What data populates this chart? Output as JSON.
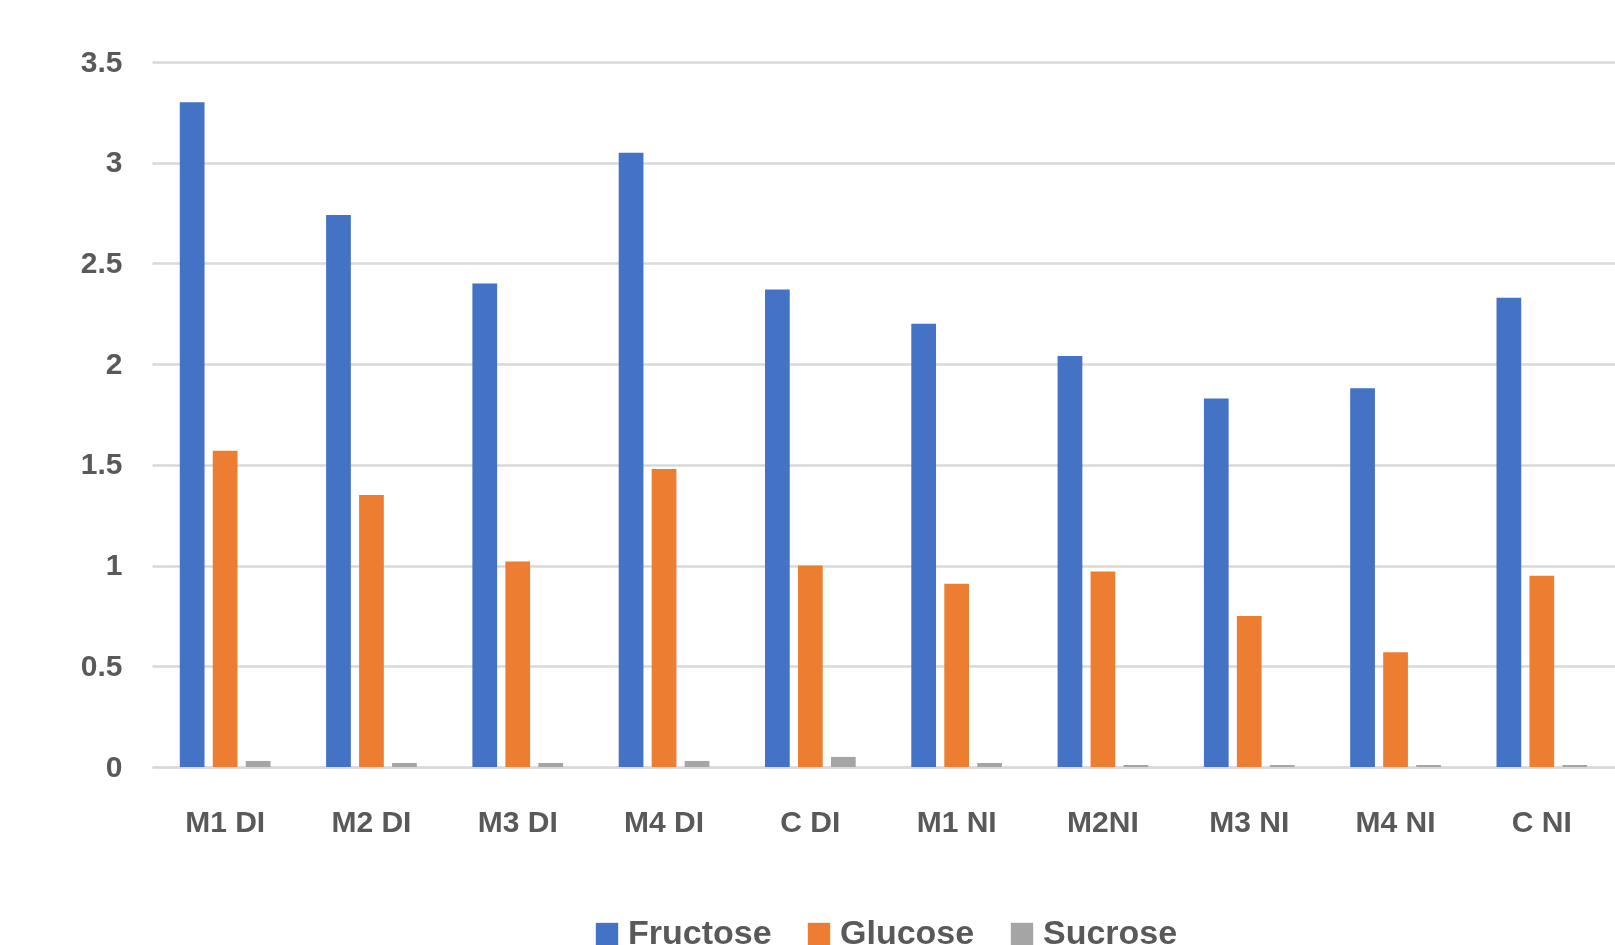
{
  "chart_data": {
    "type": "bar",
    "categories": [
      "M1 DI",
      "M2 DI",
      "M3 DI",
      "M4 DI",
      "C DI",
      "M1 NI",
      "M2NI",
      "M3 NI",
      "M4 NI",
      "C NI"
    ],
    "series": [
      {
        "name": "Fructose",
        "color": "#4472c4",
        "values": [
          3.3,
          2.74,
          2.4,
          3.05,
          2.37,
          2.2,
          2.04,
          1.83,
          1.88,
          2.33
        ]
      },
      {
        "name": "Glucose",
        "color": "#ed7d31",
        "values": [
          1.57,
          1.35,
          1.02,
          1.48,
          1.0,
          0.91,
          0.97,
          0.75,
          0.57,
          0.95
        ]
      },
      {
        "name": "Sucrose",
        "color": "#a5a5a5",
        "values": [
          0.03,
          0.02,
          0.02,
          0.03,
          0.05,
          0.02,
          0.01,
          0.01,
          0.01,
          0.01
        ]
      }
    ],
    "ylim": [
      0,
      3.5
    ],
    "yticks": [
      0,
      0.5,
      1,
      1.5,
      2,
      2.5,
      3,
      3.5
    ],
    "grid": "y",
    "legend": "bottom"
  }
}
